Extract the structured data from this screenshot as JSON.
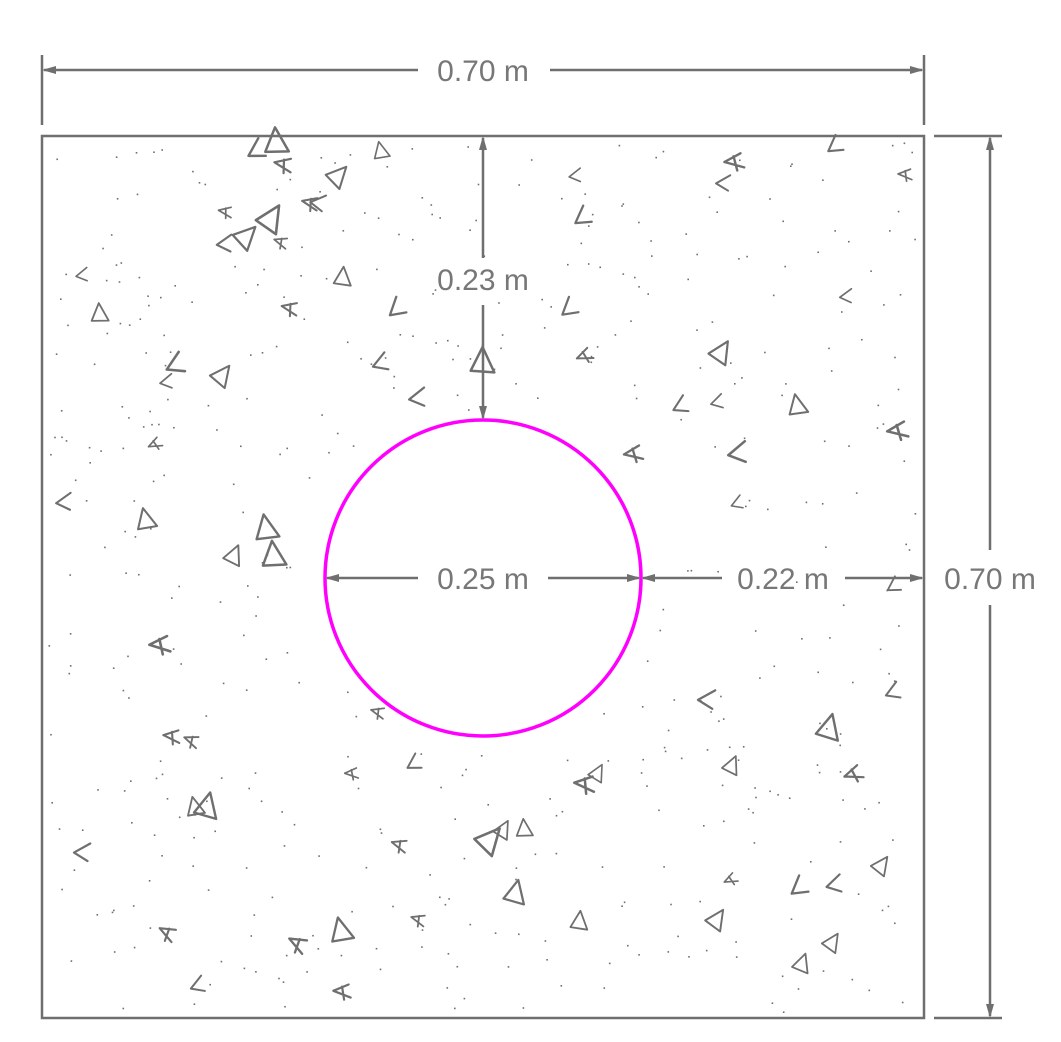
{
  "diagram": {
    "outer_width_label": "0.70 m",
    "outer_height_label": "0.70 m",
    "top_cover_label": "0.23 m",
    "opening_diameter_label": "0.25 m",
    "side_cover_label": "0.22 m",
    "opening_color": "#ff00ff",
    "line_color": "#6f6f6f"
  }
}
